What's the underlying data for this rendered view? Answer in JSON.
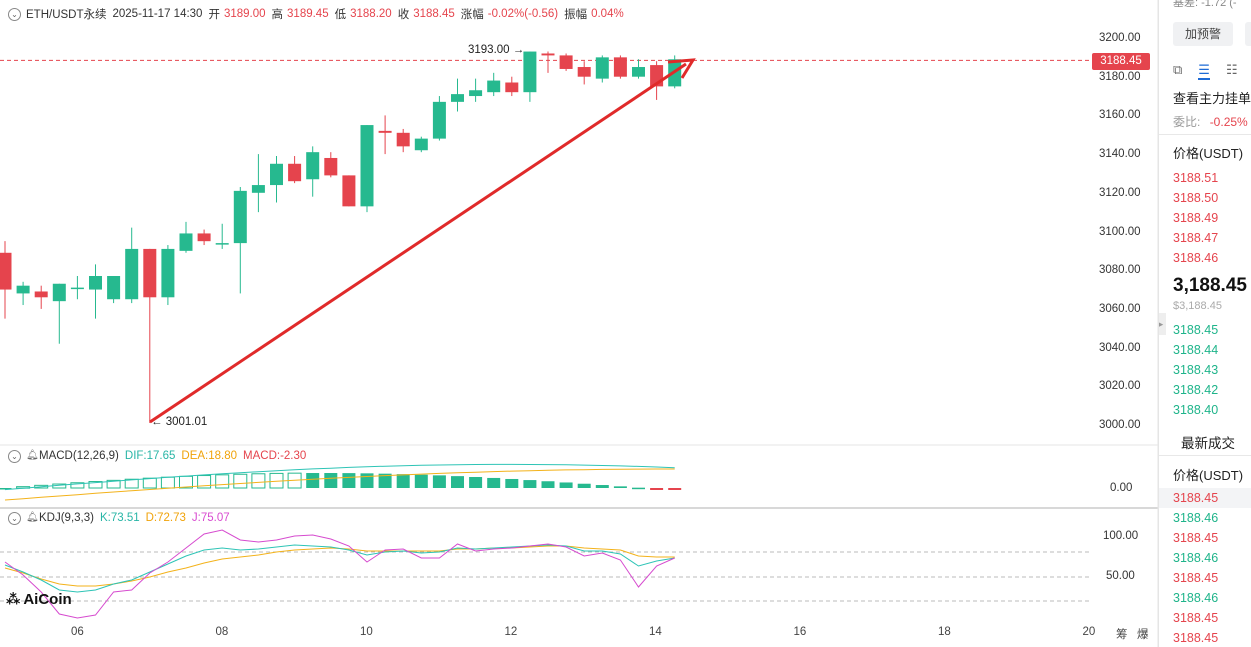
{
  "header": {
    "symbol": "ETH/USDT永续",
    "datetime": "2025-11-17 14:30",
    "open_label": "开",
    "open": "3189.00",
    "high_label": "高",
    "high": "3189.45",
    "low_label": "低",
    "low": "3188.20",
    "close_label": "收",
    "close": "3188.45",
    "change_label": "涨幅",
    "change": "-0.02%(-0.56)",
    "amp_label": "振幅",
    "amp": "0.04%"
  },
  "macd": {
    "title": "MACD(12,26,9)",
    "dif": "DIF:17.65",
    "dea": "DEA:18.80",
    "macd": "MACD:-2.30"
  },
  "kdj": {
    "title": "KDJ(9,3,3)",
    "k": "K:73.51",
    "d": "D:72.73",
    "j": "J:75.07"
  },
  "price_axis": [
    "3200.00",
    "3180.00",
    "3160.00",
    "3140.00",
    "3120.00",
    "3100.00",
    "3080.00",
    "3060.00",
    "3040.00",
    "3020.00",
    "3000.00"
  ],
  "macd_axis": [
    "0.00"
  ],
  "kdj_axis": [
    "100.00",
    "50.00"
  ],
  "last_price_tag": "3188.45",
  "annotations": {
    "high": "3193.00 →",
    "low": "← 3001.01"
  },
  "x_axis": [
    "06",
    "08",
    "10",
    "12",
    "14",
    "16",
    "18",
    "20"
  ],
  "x_tools": {
    "a": "筹",
    "b": "爆"
  },
  "logo": "AiCoin",
  "colors": {
    "up": "#26b98f",
    "down": "#e5444d",
    "arrow": "#e02a2a",
    "dif": "#2ec4b6",
    "dea": "#f3b21a",
    "j": "#d64bcf"
  },
  "chart_data": {
    "type": "candlestick",
    "candles": [
      {
        "o": 3089,
        "h": 3095,
        "l": 3055,
        "c": 3070
      },
      {
        "o": 3068,
        "h": 3074,
        "l": 3062,
        "c": 3072
      },
      {
        "o": 3069,
        "h": 3072,
        "l": 3060,
        "c": 3066
      },
      {
        "o": 3064,
        "h": 3073,
        "l": 3042,
        "c": 3073
      },
      {
        "o": 3071,
        "h": 3077,
        "l": 3065,
        "c": 3071
      },
      {
        "o": 3070,
        "h": 3083,
        "l": 3055,
        "c": 3077
      },
      {
        "o": 3065,
        "h": 3077,
        "l": 3063,
        "c": 3077
      },
      {
        "o": 3065,
        "h": 3102,
        "l": 3063,
        "c": 3091
      },
      {
        "o": 3091,
        "h": 3091,
        "l": 3001.01,
        "c": 3066
      },
      {
        "o": 3066,
        "h": 3093,
        "l": 3062,
        "c": 3091
      },
      {
        "o": 3090,
        "h": 3105,
        "l": 3089,
        "c": 3099
      },
      {
        "o": 3099,
        "h": 3101,
        "l": 3093,
        "c": 3095
      },
      {
        "o": 3094,
        "h": 3104,
        "l": 3091,
        "c": 3094
      },
      {
        "o": 3094,
        "h": 3123,
        "l": 3068,
        "c": 3121
      },
      {
        "o": 3120,
        "h": 3140,
        "l": 3110,
        "c": 3124
      },
      {
        "o": 3124,
        "h": 3139,
        "l": 3115,
        "c": 3135
      },
      {
        "o": 3135,
        "h": 3139,
        "l": 3125,
        "c": 3126
      },
      {
        "o": 3127,
        "h": 3144,
        "l": 3118,
        "c": 3141
      },
      {
        "o": 3138,
        "h": 3141,
        "l": 3128,
        "c": 3129
      },
      {
        "o": 3129,
        "h": 3129,
        "l": 3113,
        "c": 3113
      },
      {
        "o": 3113,
        "h": 3155,
        "l": 3110,
        "c": 3155
      },
      {
        "o": 3152,
        "h": 3160,
        "l": 3140,
        "c": 3151
      },
      {
        "o": 3151,
        "h": 3153,
        "l": 3141,
        "c": 3144
      },
      {
        "o": 3142,
        "h": 3149,
        "l": 3141,
        "c": 3148
      },
      {
        "o": 3148,
        "h": 3170,
        "l": 3147,
        "c": 3167
      },
      {
        "o": 3167,
        "h": 3179,
        "l": 3162,
        "c": 3171
      },
      {
        "o": 3170,
        "h": 3179,
        "l": 3167,
        "c": 3173
      },
      {
        "o": 3172,
        "h": 3182,
        "l": 3170,
        "c": 3178
      },
      {
        "o": 3177,
        "h": 3180,
        "l": 3170,
        "c": 3172
      },
      {
        "o": 3172,
        "h": 3193,
        "l": 3167,
        "c": 3193
      },
      {
        "o": 3192,
        "h": 3193,
        "l": 3182,
        "c": 3191
      },
      {
        "o": 3191,
        "h": 3192,
        "l": 3183,
        "c": 3184
      },
      {
        "o": 3185,
        "h": 3188,
        "l": 3176,
        "c": 3180
      },
      {
        "o": 3179,
        "h": 3191,
        "l": 3177,
        "c": 3190
      },
      {
        "o": 3190,
        "h": 3191,
        "l": 3179,
        "c": 3180
      },
      {
        "o": 3180,
        "h": 3189,
        "l": 3179,
        "c": 3185
      },
      {
        "o": 3186,
        "h": 3188,
        "l": 3168,
        "c": 3175
      },
      {
        "o": 3175,
        "h": 3191,
        "l": 3174,
        "c": 3189
      }
    ],
    "y_range": [
      3000,
      3200
    ]
  },
  "right_panel": {
    "top_text": "基差: -1.72 (-",
    "alert_button": "加预警",
    "depth_title": "查看主力挂单",
    "ratio_label": "委比:",
    "ratio_value": "-0.25%",
    "price_header": "价格(USDT)",
    "asks": [
      "3188.51",
      "3188.50",
      "3188.49",
      "3188.47",
      "3188.46"
    ],
    "last_price": "3,188.45",
    "last_price_sub": "$3,188.45",
    "bids": [
      "3188.45",
      "3188.44",
      "3188.43",
      "3188.42",
      "3188.40"
    ],
    "trades_tab": "最新成交",
    "trades_header": "价格(USDT)",
    "trades": [
      {
        "p": "3188.45",
        "s": "sell"
      },
      {
        "p": "3188.46",
        "s": "buy"
      },
      {
        "p": "3188.45",
        "s": "sell"
      },
      {
        "p": "3188.46",
        "s": "buy"
      },
      {
        "p": "3188.45",
        "s": "sell"
      },
      {
        "p": "3188.46",
        "s": "buy"
      },
      {
        "p": "3188.45",
        "s": "sell"
      },
      {
        "p": "3188.45",
        "s": "sell"
      }
    ]
  }
}
